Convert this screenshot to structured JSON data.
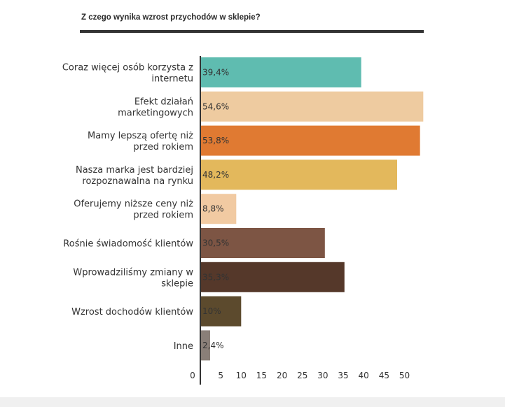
{
  "chart_data": {
    "type": "bar",
    "orientation": "horizontal",
    "title": "Z czego wynika wzrost przychodów w sklepie?",
    "categories": [
      [
        "Coraz więcej osób korzysta z",
        "internetu"
      ],
      [
        "Efekt działań",
        "marketingowych"
      ],
      [
        "Mamy lepszą ofertę niż",
        "przed rokiem"
      ],
      [
        "Nasza marka jest bardziej",
        "rozpoznawalna na rynku"
      ],
      [
        "Oferujemy niższe ceny niż",
        "przed rokiem"
      ],
      [
        "Rośnie świadomość klientów"
      ],
      [
        "Wprowadziliśmy zmiany w",
        "sklepie"
      ],
      [
        "Wzrost dochodów klientów"
      ],
      [
        "Inne"
      ]
    ],
    "values": [
      39.4,
      54.6,
      53.8,
      48.2,
      8.8,
      30.5,
      35.3,
      10,
      2.4
    ],
    "value_labels": [
      "39,4%",
      "54,6%",
      "53,8%",
      "48,2%",
      "8,8%",
      "30,5%",
      "35,3%",
      "10%",
      "2,4%"
    ],
    "colors": [
      "#5fbcb0",
      "#eecba0",
      "#e07a32",
      "#e3b85c",
      "#f1caa2",
      "#7d5544",
      "#55382a",
      "#5c4a2d",
      "#8a7f78"
    ],
    "xticks": [
      0,
      5,
      10,
      15,
      20,
      25,
      30,
      35,
      40,
      45,
      50
    ],
    "xlim": [
      0,
      55
    ],
    "grid": false,
    "legend": "none"
  }
}
